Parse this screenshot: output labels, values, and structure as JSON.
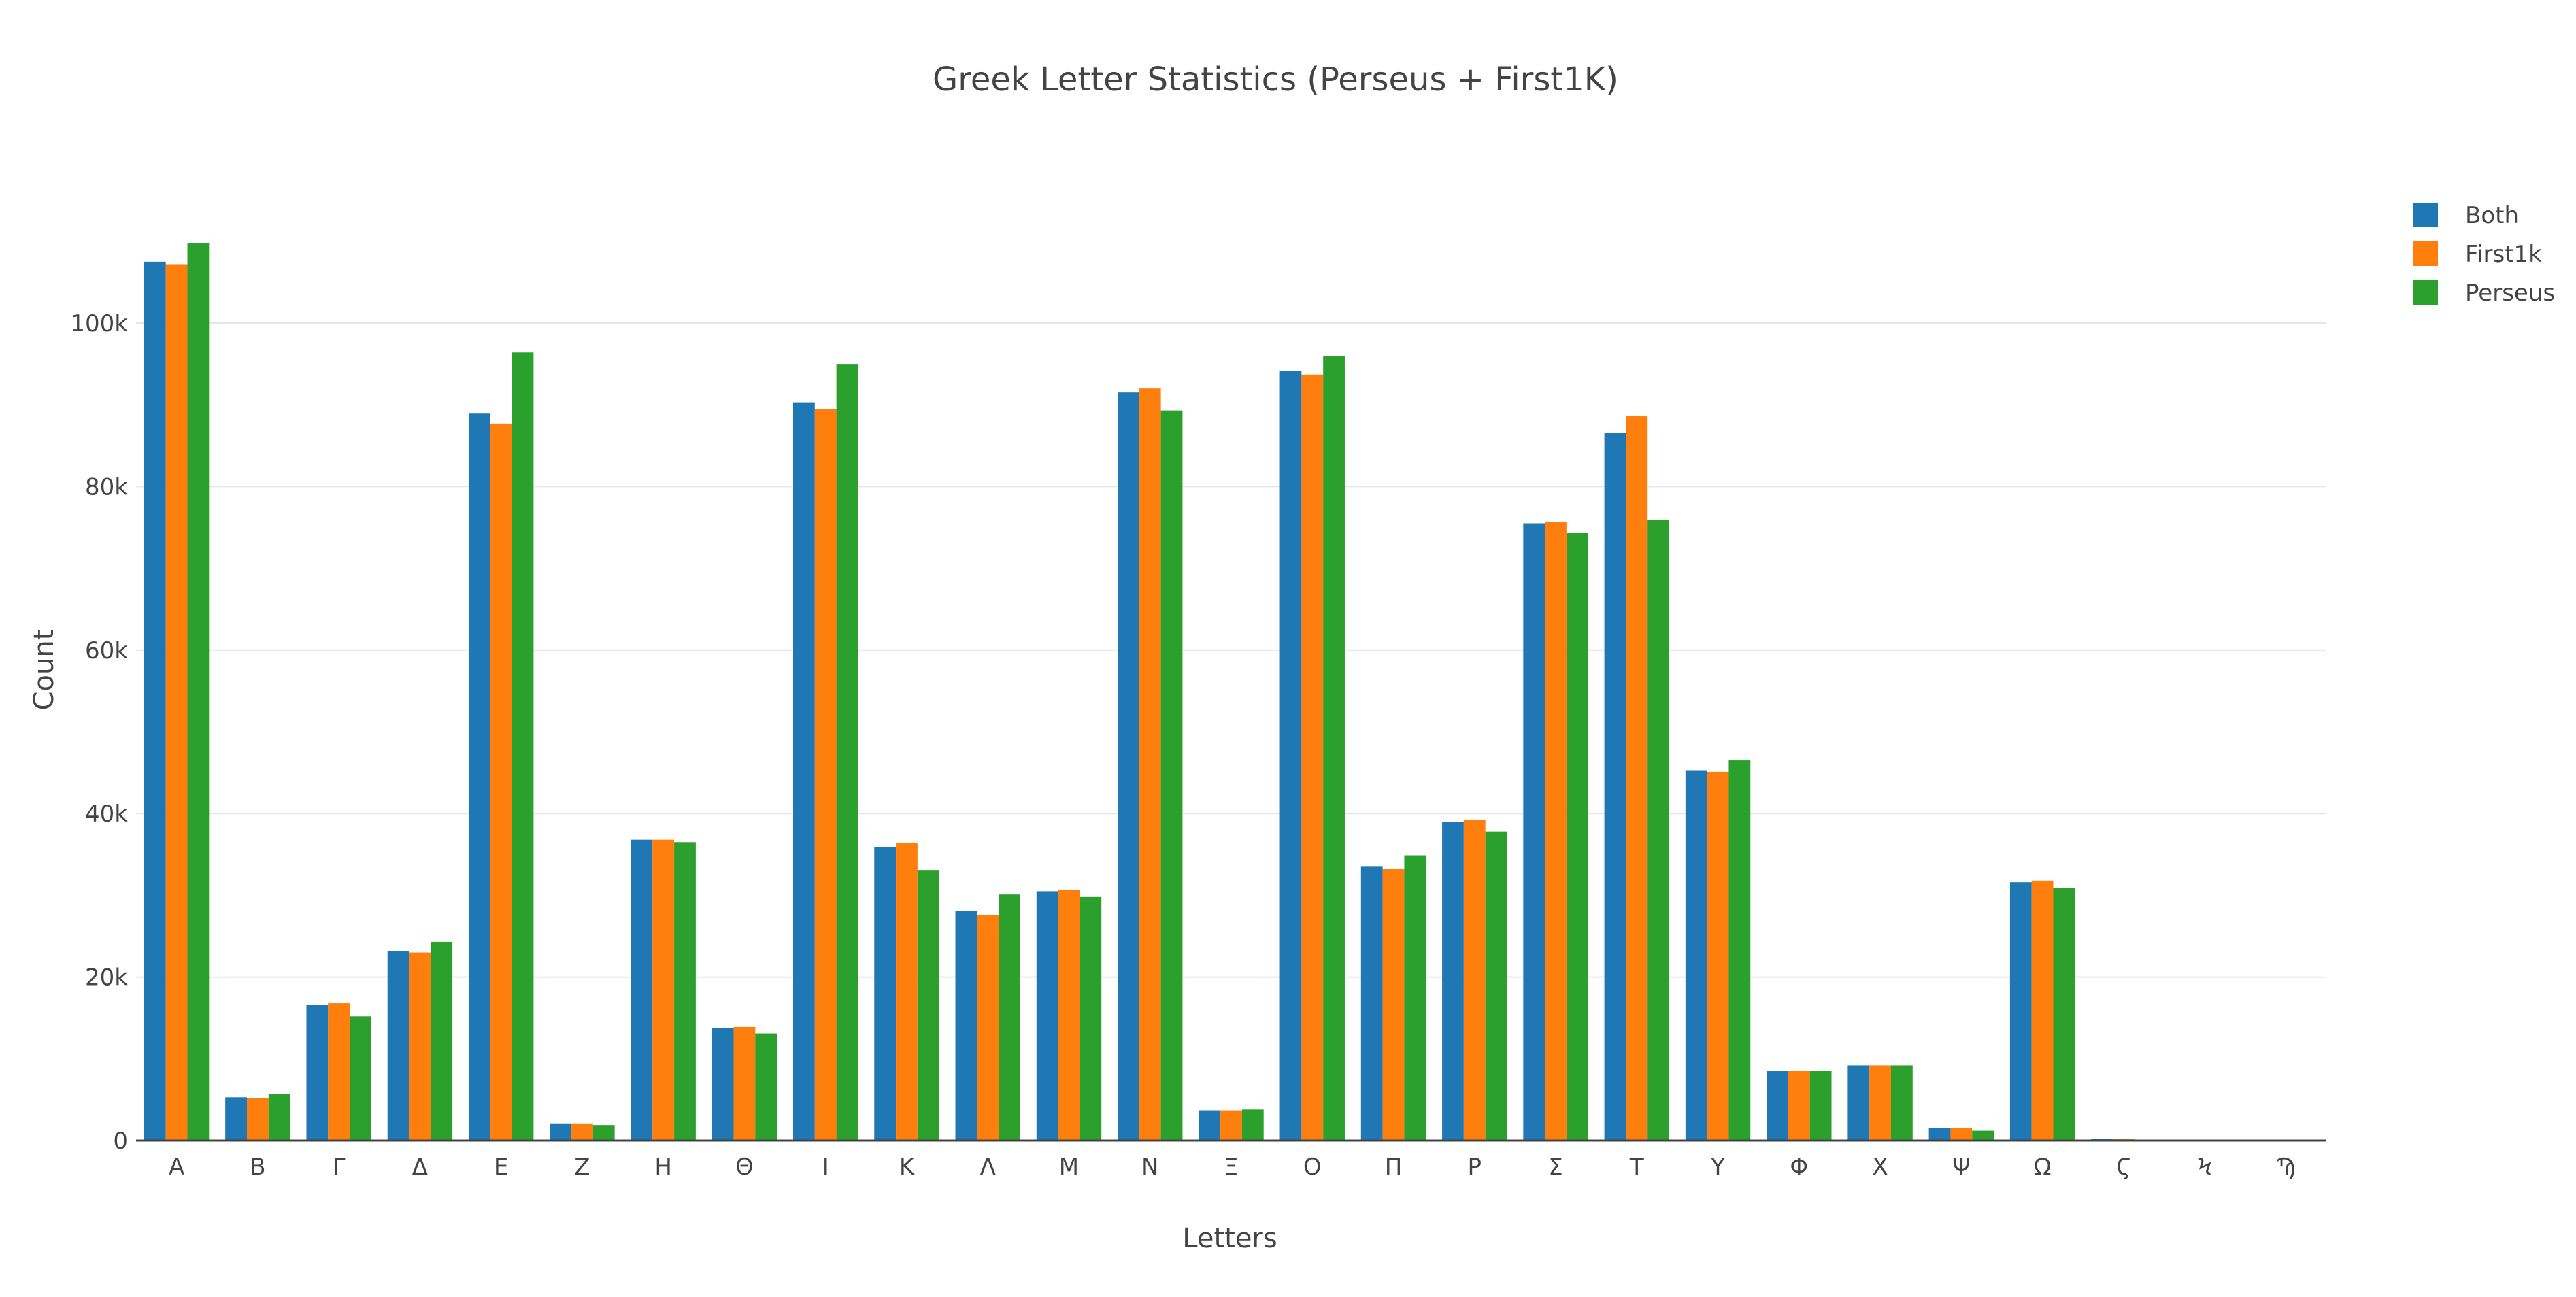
{
  "chart_data": {
    "type": "bar",
    "title": "Greek Letter Statistics (Perseus + First1K)",
    "xlabel": "Letters",
    "ylabel": "Count",
    "ylim": [
      0,
      110000
    ],
    "yticks": [
      0,
      20000,
      40000,
      60000,
      80000,
      100000
    ],
    "ytick_labels": [
      "0",
      "20k",
      "40k",
      "60k",
      "80k",
      "100k"
    ],
    "grid": true,
    "legend_position": "top-right",
    "categories": [
      "Α",
      "Β",
      "Γ",
      "Δ",
      "Ε",
      "Ζ",
      "Η",
      "Θ",
      "Ι",
      "Κ",
      "Λ",
      "Μ",
      "Ν",
      "Ξ",
      "Ο",
      "Π",
      "Ρ",
      "Σ",
      "Τ",
      "Υ",
      "Φ",
      "Χ",
      "Ψ",
      "Ω",
      "Ϛ",
      "Ϟ",
      "Ϡ"
    ],
    "series": [
      {
        "name": "Both",
        "color": "#1f77b4",
        "values": [
          107500,
          5300,
          16600,
          23200,
          89000,
          2100,
          36800,
          13800,
          90300,
          35900,
          28100,
          30500,
          91500,
          3700,
          94100,
          33500,
          39000,
          75500,
          86600,
          45300,
          8500,
          9200,
          1500,
          31600,
          200,
          10,
          10
        ]
      },
      {
        "name": "First1k",
        "color": "#ff7f0e",
        "values": [
          107200,
          5200,
          16800,
          23000,
          87700,
          2100,
          36800,
          13900,
          89500,
          36400,
          27600,
          30700,
          92000,
          3700,
          93700,
          33200,
          39200,
          75700,
          88600,
          45100,
          8500,
          9200,
          1500,
          31800,
          200,
          10,
          10
        ]
      },
      {
        "name": "Perseus",
        "color": "#2ca02c",
        "values": [
          109800,
          5700,
          15200,
          24300,
          96400,
          1900,
          36500,
          13100,
          95000,
          33100,
          30100,
          29800,
          89300,
          3800,
          96000,
          34900,
          37800,
          74300,
          75900,
          46500,
          8500,
          9200,
          1200,
          30900,
          50,
          5,
          5
        ]
      }
    ]
  }
}
